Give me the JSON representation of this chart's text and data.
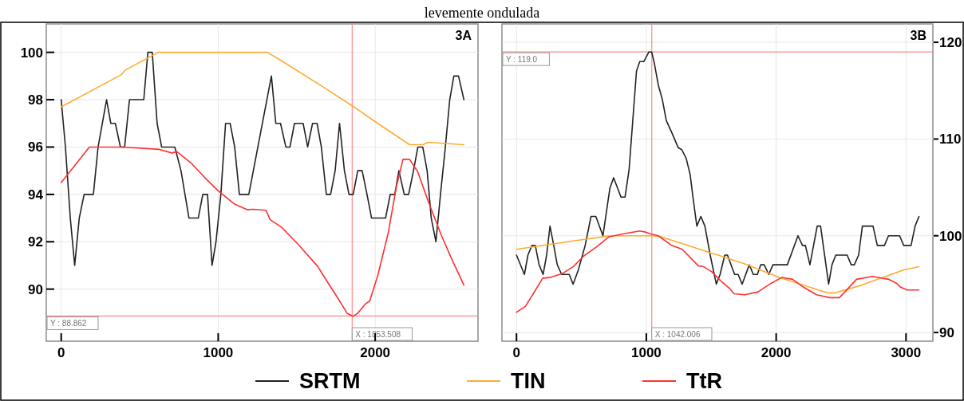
{
  "chart_data": [
    {
      "type": "line",
      "title": "3A",
      "annotations": [
        "levemente ondulada"
      ],
      "xlim": [
        -95,
        2655
      ],
      "xticks": [
        0,
        1000,
        2000
      ],
      "ylim": [
        87.8,
        101.2
      ],
      "yticks": [
        90,
        92,
        94,
        96,
        98,
        100
      ],
      "grid": true,
      "legend": "bottom",
      "line_style": "solid",
      "ref_lines": [
        {
          "axis": "y",
          "value": 88.862,
          "label": "Y : 88.862",
          "color": "#ff8a8a"
        },
        {
          "axis": "x",
          "value": 1853.508,
          "label": "X : 1853.508",
          "color": "#ff8a8a"
        }
      ],
      "series": [
        {
          "name": "SRTM",
          "color": "#222222",
          "x": [
            0,
            27,
            58,
            86,
            115,
            146,
            205,
            235,
            289,
            316,
            345,
            377,
            404,
            435,
            526,
            552,
            580,
            611,
            640,
            724,
            763,
            814,
            873,
            902,
            932,
            961,
            986,
            1017,
            1047,
            1076,
            1105,
            1135,
            1195,
            1339,
            1367,
            1397,
            1431,
            1457,
            1486,
            1541,
            1570,
            1601,
            1630,
            1657,
            1689,
            1716,
            1745,
            1773,
            1804,
            1833,
            1860,
            1889,
            1917,
            1948,
            1977,
            2066,
            2096,
            2125,
            2151,
            2185,
            2213,
            2244,
            2272,
            2303,
            2331,
            2357,
            2387,
            2416,
            2447,
            2475,
            2501,
            2531,
            2565
          ],
          "values": [
            98,
            96,
            93,
            91,
            93,
            94,
            94,
            96,
            98,
            97,
            97,
            96,
            96,
            98,
            98,
            100,
            100,
            97,
            96,
            96,
            95,
            93,
            93,
            94,
            94,
            91,
            92,
            94,
            97,
            97,
            96,
            94,
            94,
            99,
            97,
            97,
            96,
            96,
            97,
            97,
            96,
            97,
            97,
            96,
            94,
            94,
            95,
            97,
            95,
            94,
            94,
            95,
            95,
            94,
            93,
            93,
            94,
            94,
            95,
            94,
            94,
            95,
            96,
            96,
            95,
            93,
            92,
            94,
            96,
            98,
            99,
            99,
            98
          ]
        },
        {
          "name": "TIN",
          "color": "#ffab2e",
          "x": [
            0,
            382,
            408,
            619,
            1313,
            1389,
            1677,
            1863,
            2016,
            2219,
            2304,
            2337,
            2565
          ],
          "values": [
            97.7,
            99.05,
            99.25,
            100,
            100,
            99.7,
            98.5,
            97.7,
            97,
            96.1,
            96.1,
            96.2,
            96.1
          ]
        },
        {
          "name": "TtR",
          "color": "#ff3030",
          "x": [
            0,
            78,
            179,
            289,
            389,
            626,
            704,
            738,
            831,
            916,
            1000,
            1102,
            1187,
            1220,
            1305,
            1330,
            1406,
            1508,
            1634,
            1660,
            1779,
            1821,
            1858,
            1888,
            1939,
            1965,
            2016,
            2083,
            2134,
            2177,
            2219,
            2270,
            2337,
            2422,
            2490,
            2565
          ],
          "values": [
            94.5,
            95.15,
            96,
            96,
            96,
            95.9,
            95.75,
            95.8,
            95.3,
            94.7,
            94.15,
            93.6,
            93.35,
            93.37,
            93.33,
            92.94,
            92.6,
            91.9,
            90.96,
            90.68,
            89.44,
            88.98,
            88.85,
            88.98,
            89.38,
            89.5,
            90.56,
            92.37,
            94.29,
            95.48,
            95.48,
            94.97,
            93.73,
            92.26,
            91.24,
            90.17
          ]
        }
      ]
    },
    {
      "type": "line",
      "title": "3B",
      "xlim": [
        -112,
        3207
      ],
      "xticks": [
        0,
        1000,
        2000,
        3000
      ],
      "y2lim": [
        89.1,
        121.9
      ],
      "y2ticks": [
        90,
        100,
        110,
        120
      ],
      "grid": true,
      "line_style": "solid",
      "ref_lines": [
        {
          "axis": "y2",
          "value": 119.0,
          "label": "Y : 119.0",
          "color": "#ff8a8a"
        },
        {
          "axis": "x",
          "value": 1042.006,
          "label": "X : 1042.006",
          "color": "#ff8a8a"
        }
      ],
      "series": [
        {
          "color": "#222222",
          "axis": "y2",
          "x": [
            0,
            61,
            88,
            119,
            145,
            174,
            205,
            232,
            258,
            287,
            314,
            348,
            406,
            436,
            477,
            529,
            574,
            611,
            666,
            719,
            748,
            805,
            836,
            867,
            924,
            949,
            980,
            1020,
            1041,
            1061,
            1092,
            1123,
            1154,
            1195,
            1246,
            1273,
            1307,
            1338,
            1359,
            1389,
            1420,
            1451,
            1492,
            1539,
            1568,
            1604,
            1625,
            1680,
            1707,
            1738,
            1793,
            1824,
            1855,
            1881,
            1908,
            1943,
            1975,
            2086,
            2168,
            2203,
            2225,
            2260,
            2316,
            2342,
            2404,
            2430,
            2459,
            2547,
            2578,
            2602,
            2635,
            2664,
            2746,
            2779,
            2834,
            2865,
            2951,
            2982,
            3039,
            3070,
            3100
          ],
          "values": [
            98,
            96,
            98,
            99,
            99,
            97,
            96,
            98,
            101,
            99,
            97,
            96,
            96,
            95,
            96.5,
            99,
            102,
            102,
            100,
            104.9,
            106,
            104,
            104,
            106.8,
            117,
            118,
            118,
            119,
            119,
            117.9,
            115.6,
            114.1,
            111.9,
            110.7,
            109.1,
            108.9,
            108,
            106.3,
            104,
            101,
            102,
            101,
            98,
            95,
            96,
            98,
            98,
            96,
            96,
            95,
            97,
            96,
            96,
            97,
            97,
            96,
            97,
            97,
            100,
            99,
            99,
            97,
            101,
            101,
            95,
            97,
            98,
            98,
            97,
            97,
            98,
            101,
            101,
            99,
            99,
            100,
            100,
            99,
            99,
            101,
            102
          ]
        },
        {
          "color": "#ffab2e",
          "axis": "y2",
          "x": [
            0,
            457,
            723,
            1051,
            1113,
            1502,
            1553,
            1758,
            2025,
            2394,
            2455,
            2660,
            2988,
            3029,
            3100
          ],
          "values": [
            98.6,
            99.5,
            100,
            100,
            99.9,
            98.2,
            98,
            97.1,
            95.7,
            94.1,
            94.1,
            94.9,
            96.5,
            96.6,
            96.8
          ]
        },
        {
          "color": "#ff3030",
          "axis": "y2",
          "x": [
            0,
            68,
            129,
            201,
            262,
            354,
            436,
            518,
            621,
            713,
            826,
            949,
            990,
            1031,
            1092,
            1195,
            1277,
            1400,
            1441,
            1502,
            1584,
            1645,
            1676,
            1758,
            1861,
            1963,
            2045,
            2127,
            2209,
            2311,
            2414,
            2486,
            2537,
            2619,
            2742,
            2865,
            2926,
            2957,
            3008,
            3100
          ],
          "values": [
            92.1,
            92.7,
            94,
            95.6,
            95.7,
            96.1,
            96.8,
            97.9,
            98.9,
            99.9,
            100.2,
            100.5,
            100.4,
            100.2,
            100,
            99,
            98.6,
            96.9,
            96.8,
            96.3,
            95.2,
            94.5,
            94,
            93.9,
            94.2,
            95.1,
            95.7,
            95.5,
            94.7,
            93.9,
            93.6,
            93.6,
            94.3,
            95.5,
            95.8,
            95.5,
            95.1,
            94.7,
            94.4,
            94.4
          ]
        }
      ]
    }
  ]
}
